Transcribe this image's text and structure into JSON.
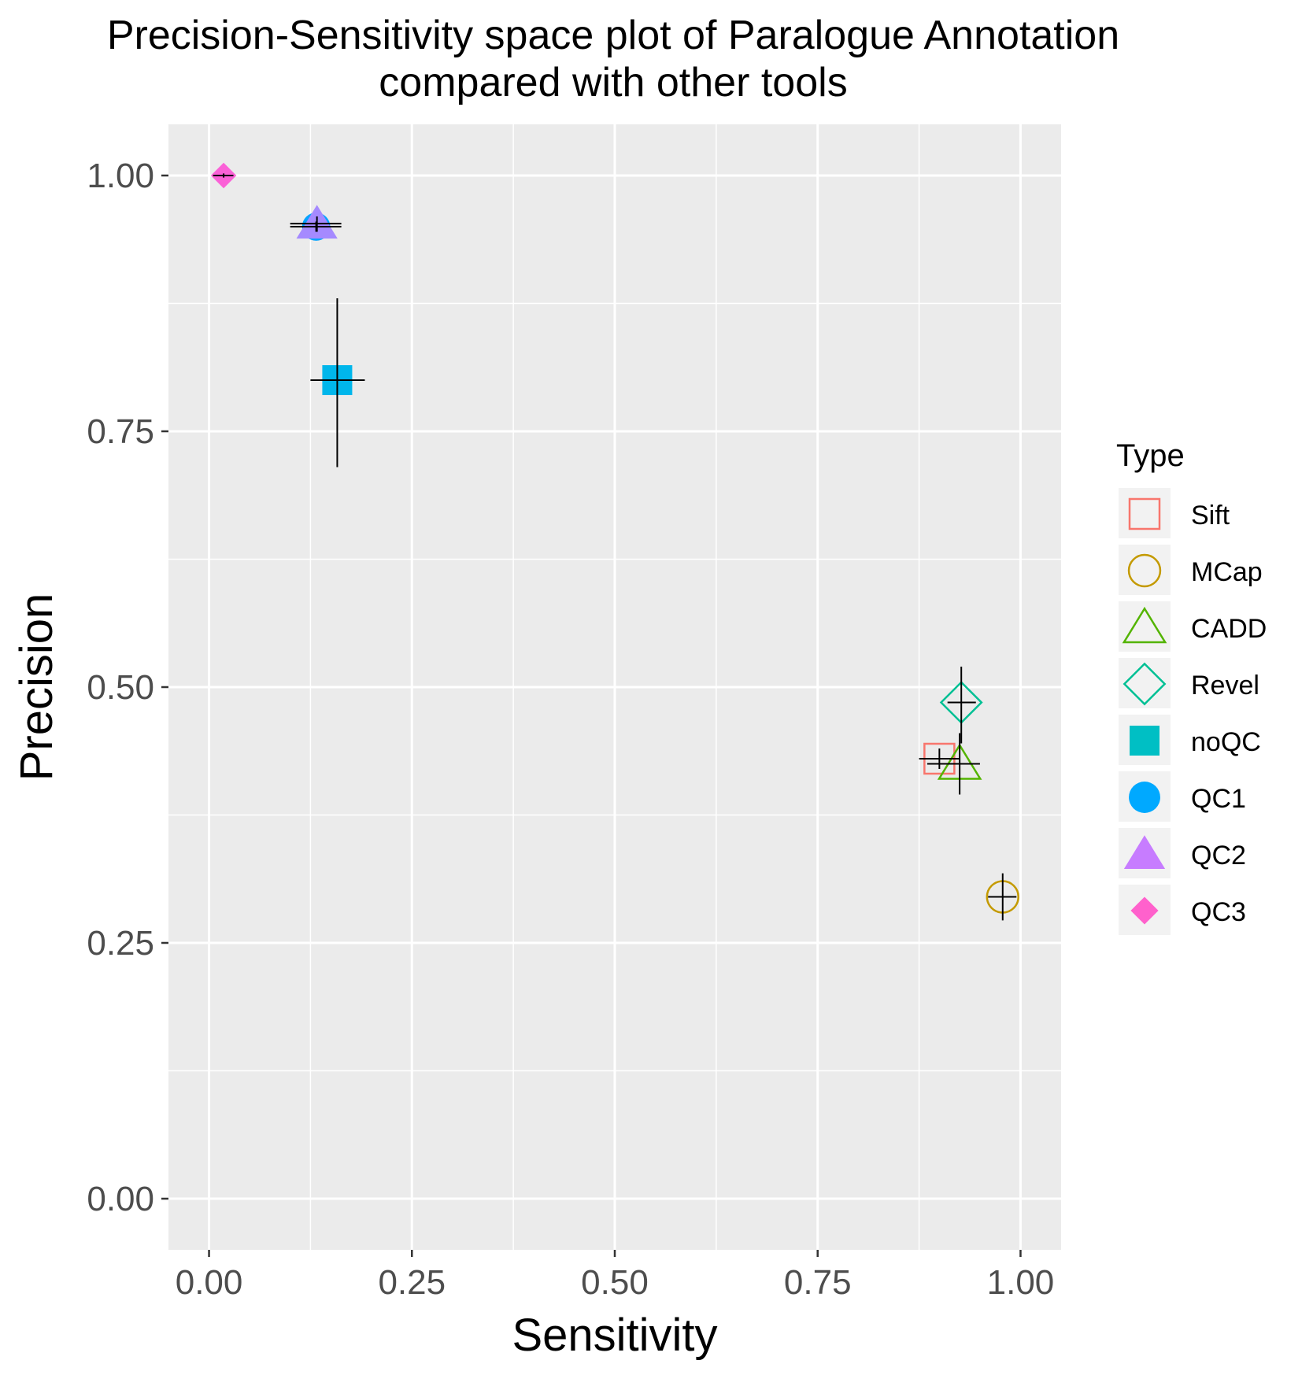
{
  "chart_data": {
    "type": "scatter",
    "title_line1": "Precision-Sensitivity space plot of Paralogue Annotation",
    "title_line2": "compared with other tools",
    "xlabel": "Sensitivity",
    "ylabel": "Precision",
    "xlim": [
      -0.05,
      1.05
    ],
    "ylim": [
      -0.05,
      1.05
    ],
    "x_ticks": [
      0.0,
      0.25,
      0.5,
      0.75,
      1.0
    ],
    "x_tick_labels": [
      "0.00",
      "0.25",
      "0.50",
      "0.75",
      "1.00"
    ],
    "y_ticks": [
      0.0,
      0.25,
      0.5,
      0.75,
      1.0
    ],
    "y_tick_labels": [
      "0.00",
      "0.25",
      "0.50",
      "0.75",
      "1.00"
    ],
    "grid": true,
    "legend_title": "Type",
    "legend_position": "right",
    "series": [
      {
        "name": "Sift",
        "shape": "square-open",
        "color": "#F8766D",
        "x": 0.9,
        "y": 0.43,
        "x_err": [
          0.875,
          0.925
        ],
        "y_err": [
          0.42,
          0.44
        ]
      },
      {
        "name": "MCap",
        "shape": "circle-open",
        "color": "#C49A00",
        "x": 0.978,
        "y": 0.295,
        "x_err": [
          0.96,
          0.995
        ],
        "y_err": [
          0.272,
          0.318
        ]
      },
      {
        "name": "CADD",
        "shape": "triangle-open",
        "color": "#53B400",
        "x": 0.925,
        "y": 0.425,
        "x_err": [
          0.885,
          0.95
        ],
        "y_err": [
          0.395,
          0.455
        ]
      },
      {
        "name": "Revel",
        "shape": "diamond-open",
        "color": "#00C094",
        "x": 0.927,
        "y": 0.485,
        "x_err": [
          0.91,
          0.945
        ],
        "y_err": [
          0.445,
          0.52
        ]
      },
      {
        "name": "noQC",
        "shape": "square",
        "color": "#00B6EB",
        "x": 0.158,
        "y": 0.8,
        "x_err": [
          0.125,
          0.192
        ],
        "y_err": [
          0.715,
          0.88
        ]
      },
      {
        "name": "QC1",
        "shape": "circle",
        "color": "#06A4FF",
        "x": 0.132,
        "y": 0.95,
        "x_err": [
          0.1,
          0.163
        ],
        "y_err": [
          0.945,
          0.955
        ]
      },
      {
        "name": "QC2",
        "shape": "triangle",
        "color": "#A58AFF",
        "x": 0.133,
        "y": 0.953,
        "x_err": [
          0.1,
          0.163
        ],
        "y_err": [
          0.945,
          0.96
        ]
      },
      {
        "name": "QC3",
        "shape": "diamond",
        "color": "#FB61D7",
        "x": 0.018,
        "y": 1.0,
        "x_err": [
          0.005,
          0.03
        ],
        "y_err": [
          0.998,
          1.002
        ]
      }
    ],
    "legend_colors": {
      "Sift": "#F8766D",
      "MCap": "#C49A00",
      "CADD": "#53B400",
      "Revel": "#00C094",
      "noQC": "#00BFC4",
      "QC1": "#00A9FF",
      "QC2": "#C77CFF",
      "QC3": "#FF61CC"
    }
  }
}
